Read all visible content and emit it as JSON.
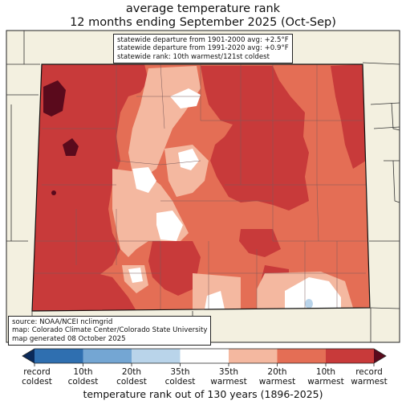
{
  "title": {
    "line1": "average temperature rank",
    "line2": "12 months ending September 2025 (Oct-Sep)"
  },
  "stats": {
    "line1": "statewide departure from 1901-2000 avg: +2.5°F",
    "line2": "statewide departure from 1991-2020 avg: +0.9°F",
    "line3": "statewide rank: 10th warmest/121st coldest"
  },
  "source": {
    "line1": "source: NOAA/NCEI nclimgrid",
    "line2": "map: Colorado Climate Center/Colorado State University",
    "line3": "map generated 08 October 2025"
  },
  "legend": {
    "title": "temperature rank out of 130 years (1896-2025)",
    "labels": [
      [
        "record",
        "coldest"
      ],
      [
        "10th",
        "coldest"
      ],
      [
        "20th",
        "coldest"
      ],
      [
        "35th",
        "coldest"
      ],
      [
        "35th",
        "warmest"
      ],
      [
        "20th",
        "warmest"
      ],
      [
        "10th",
        "warmest"
      ],
      [
        "record",
        "warmest"
      ]
    ],
    "colors": {
      "record_coldest": "#0b2a5a",
      "c1": "#2f6fb0",
      "c2": "#74a6d3",
      "c3": "#b9d4ea",
      "near_normal": "#ffffff",
      "w1": "#f4b8a0",
      "w2": "#e46e55",
      "w3": "#c83a3a",
      "record_warmest": "#5a0a1c"
    }
  },
  "map_colors": {
    "background": "#f3f0e0",
    "state_fill": "#e46e55",
    "county_lines": "#7a6a6a",
    "border": "#111111"
  }
}
